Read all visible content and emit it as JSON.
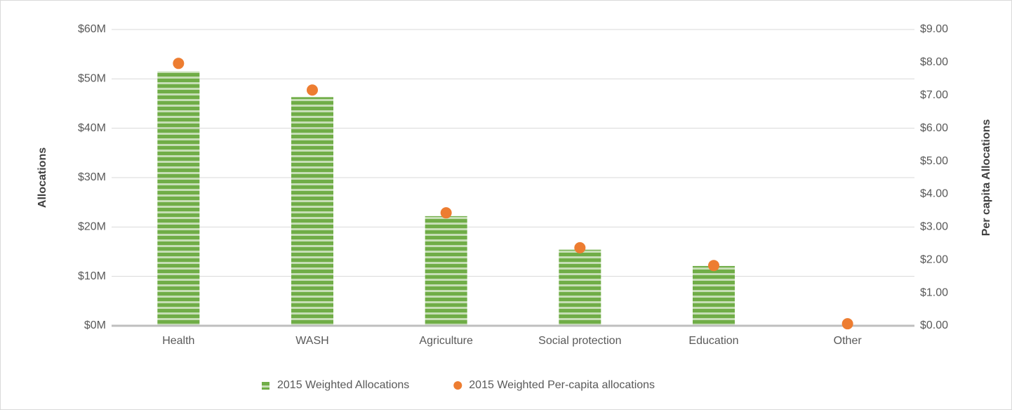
{
  "chart_data": {
    "type": "bar",
    "categories": [
      "Health",
      "WASH",
      "Agriculture",
      "Social protection",
      "Education",
      "Other"
    ],
    "series": [
      {
        "name": "2015 Weighted Allocations",
        "type": "bar",
        "axis": "y",
        "color": "#70ad47",
        "values": [
          51.5,
          46.3,
          22.2,
          15.4,
          12.1,
          0.2
        ]
      },
      {
        "name": "2015 Weighted Per-capita allocations",
        "type": "scatter",
        "axis": "y2",
        "color": "#ed7d31",
        "values": [
          7.97,
          7.16,
          3.43,
          2.37,
          1.83,
          0.06
        ]
      }
    ],
    "ylabel": "Allocations",
    "y2label": "Per capita Allocations",
    "ylim": [
      0,
      60
    ],
    "yticks": [
      {
        "value": 0,
        "label": "$0M"
      },
      {
        "value": 10,
        "label": "$10M"
      },
      {
        "value": 20,
        "label": "$20M"
      },
      {
        "value": 30,
        "label": "$30M"
      },
      {
        "value": 40,
        "label": "$40M"
      },
      {
        "value": 50,
        "label": "$50M"
      },
      {
        "value": 60,
        "label": "$60M"
      }
    ],
    "y2lim": [
      0,
      9
    ],
    "y2ticks": [
      {
        "value": 0,
        "label": "$0.00"
      },
      {
        "value": 1,
        "label": "$1.00"
      },
      {
        "value": 2,
        "label": "$2.00"
      },
      {
        "value": 3,
        "label": "$3.00"
      },
      {
        "value": 4,
        "label": "$4.00"
      },
      {
        "value": 5,
        "label": "$5.00"
      },
      {
        "value": 6,
        "label": "$6.00"
      },
      {
        "value": 7,
        "label": "$7.00"
      },
      {
        "value": 8,
        "label": "$8.00"
      },
      {
        "value": 9,
        "label": "$9.00"
      }
    ],
    "grid": true,
    "legend": "bottom"
  }
}
